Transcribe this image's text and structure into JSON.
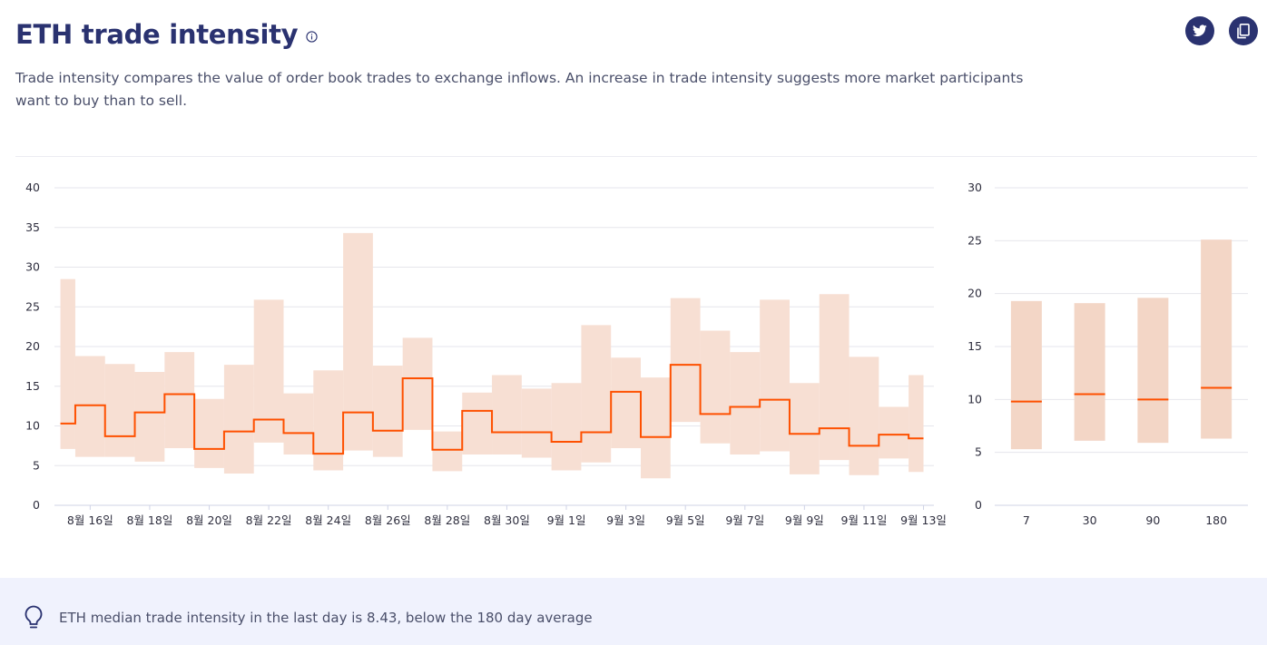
{
  "header": {
    "title": "ETH trade intensity",
    "info_icon": "info-icon",
    "description": "Trade intensity compares the value of order book trades to exchange inflows. An increase in trade intensity suggests more market participants want to buy than to sell."
  },
  "share_buttons": [
    {
      "icon": "twitter-icon"
    },
    {
      "icon": "copy-icon"
    }
  ],
  "colors": {
    "accent": "#fe5000",
    "band": "#f7dfd3",
    "band_summary": "#f3d6c6",
    "grid": "#e6e6ec",
    "title": "#2a3270"
  },
  "chart_data": [
    {
      "type": "step-area",
      "title": "",
      "xlabel": "",
      "ylabel": "",
      "ylim": [
        0,
        40
      ],
      "yticks": [
        0,
        5,
        10,
        15,
        20,
        25,
        30,
        35,
        40
      ],
      "grid": true,
      "x_ticks": [
        {
          "label": "8월 16일",
          "x": 1
        },
        {
          "label": "8월 18일",
          "x": 3
        },
        {
          "label": "8월 20일",
          "x": 5
        },
        {
          "label": "8월 22일",
          "x": 7
        },
        {
          "label": "8월 24일",
          "x": 9
        },
        {
          "label": "8월 26일",
          "x": 11
        },
        {
          "label": "8월 28일",
          "x": 13
        },
        {
          "label": "8월 30일",
          "x": 15
        },
        {
          "label": "9월 1일",
          "x": 17
        },
        {
          "label": "9월 3일",
          "x": 19
        },
        {
          "label": "9월 5일",
          "x": 21
        },
        {
          "label": "9월 7일",
          "x": 23
        },
        {
          "label": "9월 9일",
          "x": 25
        },
        {
          "label": "9월 11일",
          "x": 27
        },
        {
          "label": "9월 13일",
          "x": 29
        }
      ],
      "x_domain": [
        -0.2,
        29.35
      ],
      "steps": [
        {
          "x0": 0.0,
          "x1": 0.5,
          "median": 10.3,
          "low": 7.1,
          "high": 28.5
        },
        {
          "x0": 0.5,
          "x1": 1.5,
          "median": 12.6,
          "low": 6.1,
          "high": 18.8
        },
        {
          "x0": 1.5,
          "x1": 2.5,
          "median": 8.7,
          "low": 6.1,
          "high": 17.8
        },
        {
          "x0": 2.5,
          "x1": 3.5,
          "median": 11.7,
          "low": 5.5,
          "high": 16.8
        },
        {
          "x0": 3.5,
          "x1": 4.5,
          "median": 14.0,
          "low": 7.2,
          "high": 19.3
        },
        {
          "x0": 4.5,
          "x1": 5.5,
          "median": 7.1,
          "low": 4.7,
          "high": 13.4
        },
        {
          "x0": 5.5,
          "x1": 6.5,
          "median": 9.3,
          "low": 4.0,
          "high": 17.7
        },
        {
          "x0": 6.5,
          "x1": 7.5,
          "median": 10.8,
          "low": 7.9,
          "high": 25.9
        },
        {
          "x0": 7.5,
          "x1": 8.5,
          "median": 9.1,
          "low": 6.4,
          "high": 14.1
        },
        {
          "x0": 8.5,
          "x1": 9.5,
          "median": 6.5,
          "low": 4.4,
          "high": 17.0
        },
        {
          "x0": 9.5,
          "x1": 10.5,
          "median": 11.7,
          "low": 6.9,
          "high": 34.3
        },
        {
          "x0": 10.5,
          "x1": 11.5,
          "median": 9.4,
          "low": 6.1,
          "high": 17.6
        },
        {
          "x0": 11.5,
          "x1": 12.5,
          "median": 16.0,
          "low": 9.5,
          "high": 21.1
        },
        {
          "x0": 12.5,
          "x1": 13.5,
          "median": 7.0,
          "low": 4.3,
          "high": 9.3
        },
        {
          "x0": 13.5,
          "x1": 14.5,
          "median": 11.9,
          "low": 6.4,
          "high": 14.2
        },
        {
          "x0": 14.5,
          "x1": 15.5,
          "median": 9.2,
          "low": 6.4,
          "high": 16.4
        },
        {
          "x0": 15.5,
          "x1": 16.5,
          "median": 9.2,
          "low": 6.0,
          "high": 14.7
        },
        {
          "x0": 16.5,
          "x1": 17.5,
          "median": 8.0,
          "low": 4.4,
          "high": 15.4
        },
        {
          "x0": 17.5,
          "x1": 18.5,
          "median": 9.2,
          "low": 5.4,
          "high": 22.7
        },
        {
          "x0": 18.5,
          "x1": 19.5,
          "median": 14.3,
          "low": 7.2,
          "high": 18.6
        },
        {
          "x0": 19.5,
          "x1": 20.5,
          "median": 8.6,
          "low": 3.4,
          "high": 16.1
        },
        {
          "x0": 20.5,
          "x1": 21.5,
          "median": 17.7,
          "low": 10.5,
          "high": 26.1
        },
        {
          "x0": 21.5,
          "x1": 22.5,
          "median": 11.5,
          "low": 7.8,
          "high": 22.0
        },
        {
          "x0": 22.5,
          "x1": 23.5,
          "median": 12.4,
          "low": 6.4,
          "high": 19.3
        },
        {
          "x0": 23.5,
          "x1": 24.5,
          "median": 13.3,
          "low": 6.8,
          "high": 25.9
        },
        {
          "x0": 24.5,
          "x1": 25.5,
          "median": 9.0,
          "low": 3.9,
          "high": 15.4
        },
        {
          "x0": 25.5,
          "x1": 26.5,
          "median": 9.7,
          "low": 5.7,
          "high": 26.6
        },
        {
          "x0": 26.5,
          "x1": 27.5,
          "median": 7.5,
          "low": 3.8,
          "high": 18.7
        },
        {
          "x0": 27.5,
          "x1": 28.5,
          "median": 8.9,
          "low": 5.9,
          "high": 12.4
        },
        {
          "x0": 28.5,
          "x1": 29.0,
          "median": 8.43,
          "low": 4.2,
          "high": 16.4
        }
      ]
    },
    {
      "type": "box",
      "title": "",
      "xlabel": "",
      "ylabel": "",
      "ylim": [
        0,
        30
      ],
      "yticks": [
        0,
        5,
        10,
        15,
        20,
        25,
        30
      ],
      "grid": true,
      "categories": [
        "7",
        "30",
        "90",
        "180"
      ],
      "median": [
        9.8,
        10.5,
        10.0,
        11.1
      ],
      "low": [
        5.3,
        6.1,
        5.9,
        6.3
      ],
      "high": [
        19.3,
        19.1,
        19.6,
        25.1
      ]
    }
  ],
  "insight": {
    "icon": "lightbulb-icon",
    "text": "ETH median trade intensity in the last day is 8.43, below the 180 day average"
  }
}
